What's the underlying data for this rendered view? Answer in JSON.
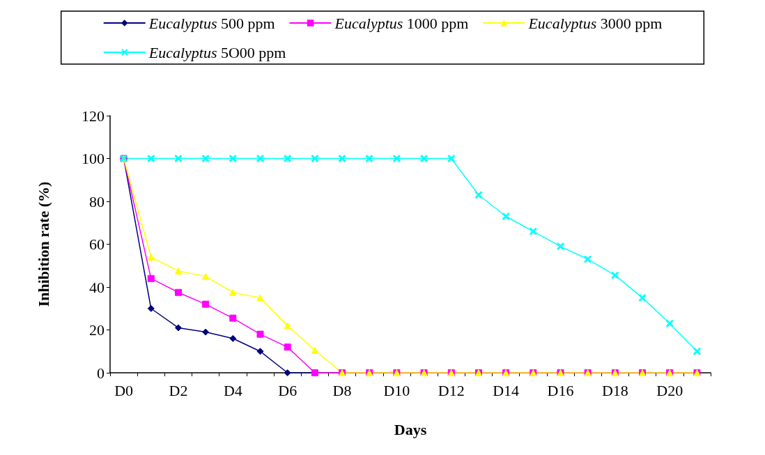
{
  "chart_data": {
    "type": "line",
    "xlabel": "Days",
    "ylabel": "Inhibition rate (%)",
    "categories": [
      "D0",
      null,
      "D2",
      null,
      "D4",
      null,
      "D6",
      null,
      "D8",
      null,
      "D10",
      null,
      "D12",
      null,
      "D14",
      null,
      "D16",
      null,
      "D18",
      null,
      "D20",
      null
    ],
    "ylim": [
      0,
      120
    ],
    "yticks": [
      0,
      20,
      40,
      60,
      80,
      100,
      120
    ],
    "grid": false,
    "legend": "top",
    "series": [
      {
        "name": "Eucalyptus 500 ppm",
        "color": "#000080",
        "marker": "diamond",
        "values": [
          100,
          30,
          21,
          19,
          16,
          10,
          0,
          0,
          null,
          null,
          null,
          null,
          null,
          null,
          null,
          null,
          null,
          null,
          null,
          null,
          null,
          null
        ]
      },
      {
        "name": "Eucalyptus 1000 ppm",
        "color": "#ff00ff",
        "marker": "square",
        "values": [
          100,
          44,
          37.5,
          32,
          25.5,
          18,
          12,
          0,
          0,
          0,
          0,
          0,
          0,
          0,
          0,
          0,
          0,
          0,
          0,
          0,
          0,
          0
        ]
      },
      {
        "name": "Eucalyptus 3000 ppm",
        "color": "#ffff00",
        "marker": "triangle",
        "values": [
          100,
          54,
          47.5,
          45,
          37.5,
          35,
          22,
          10.5,
          0,
          0,
          0,
          0,
          0,
          0,
          0,
          0,
          0,
          0,
          0,
          0,
          0,
          0
        ]
      },
      {
        "name": "Eucalyptus 5O00 ppm",
        "color": "#00ffff",
        "marker": "cross",
        "values": [
          100,
          100,
          100,
          100,
          100,
          100,
          100,
          100,
          100,
          100,
          100,
          100,
          100,
          83,
          73,
          66,
          59,
          53,
          45.5,
          35,
          23,
          10
        ]
      }
    ]
  }
}
